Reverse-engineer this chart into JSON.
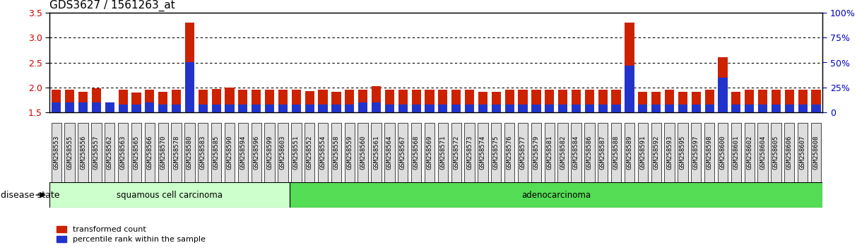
{
  "title": "GDS3627 / 1561263_at",
  "samples": [
    "GSM258553",
    "GSM258555",
    "GSM258556",
    "GSM258557",
    "GSM258562",
    "GSM258563",
    "GSM258565",
    "GSM258566",
    "GSM258570",
    "GSM258578",
    "GSM258580",
    "GSM258583",
    "GSM258585",
    "GSM258590",
    "GSM258594",
    "GSM258596",
    "GSM258599",
    "GSM258603",
    "GSM258551",
    "GSM258552",
    "GSM258554",
    "GSM258558",
    "GSM258559",
    "GSM258560",
    "GSM258561",
    "GSM258564",
    "GSM258567",
    "GSM258568",
    "GSM258569",
    "GSM258571",
    "GSM258572",
    "GSM258573",
    "GSM258574",
    "GSM258575",
    "GSM258576",
    "GSM258577",
    "GSM258579",
    "GSM258581",
    "GSM258582",
    "GSM258584",
    "GSM258586",
    "GSM258587",
    "GSM258588",
    "GSM258589",
    "GSM258591",
    "GSM258592",
    "GSM258593",
    "GSM258595",
    "GSM258597",
    "GSM258598",
    "GSM258600",
    "GSM258601",
    "GSM258602",
    "GSM258604",
    "GSM258605",
    "GSM258606",
    "GSM258607",
    "GSM258608"
  ],
  "red_values": [
    1.95,
    1.95,
    1.92,
    1.98,
    1.52,
    1.95,
    1.9,
    1.95,
    1.92,
    1.95,
    3.3,
    1.95,
    1.97,
    2.0,
    1.95,
    1.95,
    1.95,
    1.95,
    1.95,
    1.93,
    1.95,
    1.92,
    1.95,
    1.95,
    2.02,
    1.95,
    1.95,
    1.95,
    1.95,
    1.95,
    1.95,
    1.95,
    1.92,
    1.92,
    1.95,
    1.95,
    1.95,
    1.95,
    1.95,
    1.95,
    1.95,
    1.95,
    1.95,
    3.3,
    1.92,
    1.92,
    1.95,
    1.92,
    1.92,
    1.95,
    2.6,
    1.92,
    1.95,
    1.95,
    1.95,
    1.95,
    1.95,
    1.95
  ],
  "blue_values": [
    10,
    10,
    10,
    10,
    10,
    8,
    8,
    10,
    8,
    8,
    50,
    8,
    8,
    8,
    8,
    8,
    8,
    8,
    8,
    8,
    8,
    8,
    8,
    10,
    10,
    8,
    8,
    8,
    8,
    8,
    8,
    8,
    8,
    8,
    8,
    8,
    8,
    8,
    8,
    8,
    8,
    8,
    8,
    47,
    8,
    8,
    8,
    8,
    8,
    8,
    35,
    8,
    8,
    8,
    8,
    8,
    8,
    8
  ],
  "n_squamous": 18,
  "squamous_label": "squamous cell carcinoma",
  "adeno_label": "adenocarcinoma",
  "disease_state_label": "disease state",
  "legend_red": "transformed count",
  "legend_blue": "percentile rank within the sample",
  "ylim_left": [
    1.5,
    3.5
  ],
  "ylim_right": [
    0,
    100
  ],
  "yticks_left": [
    1.5,
    2.0,
    2.5,
    3.0,
    3.5
  ],
  "yticks_right": [
    0,
    25,
    50,
    75,
    100
  ],
  "red_color": "#CC2200",
  "blue_color": "#2233CC",
  "bar_width": 0.7,
  "squamous_bg": "#CCFFCC",
  "adeno_bg": "#55DD55",
  "title_fontsize": 11,
  "tick_fontsize": 6.5,
  "tick_label_color": "#CC0000",
  "right_tick_color": "#0000BB"
}
